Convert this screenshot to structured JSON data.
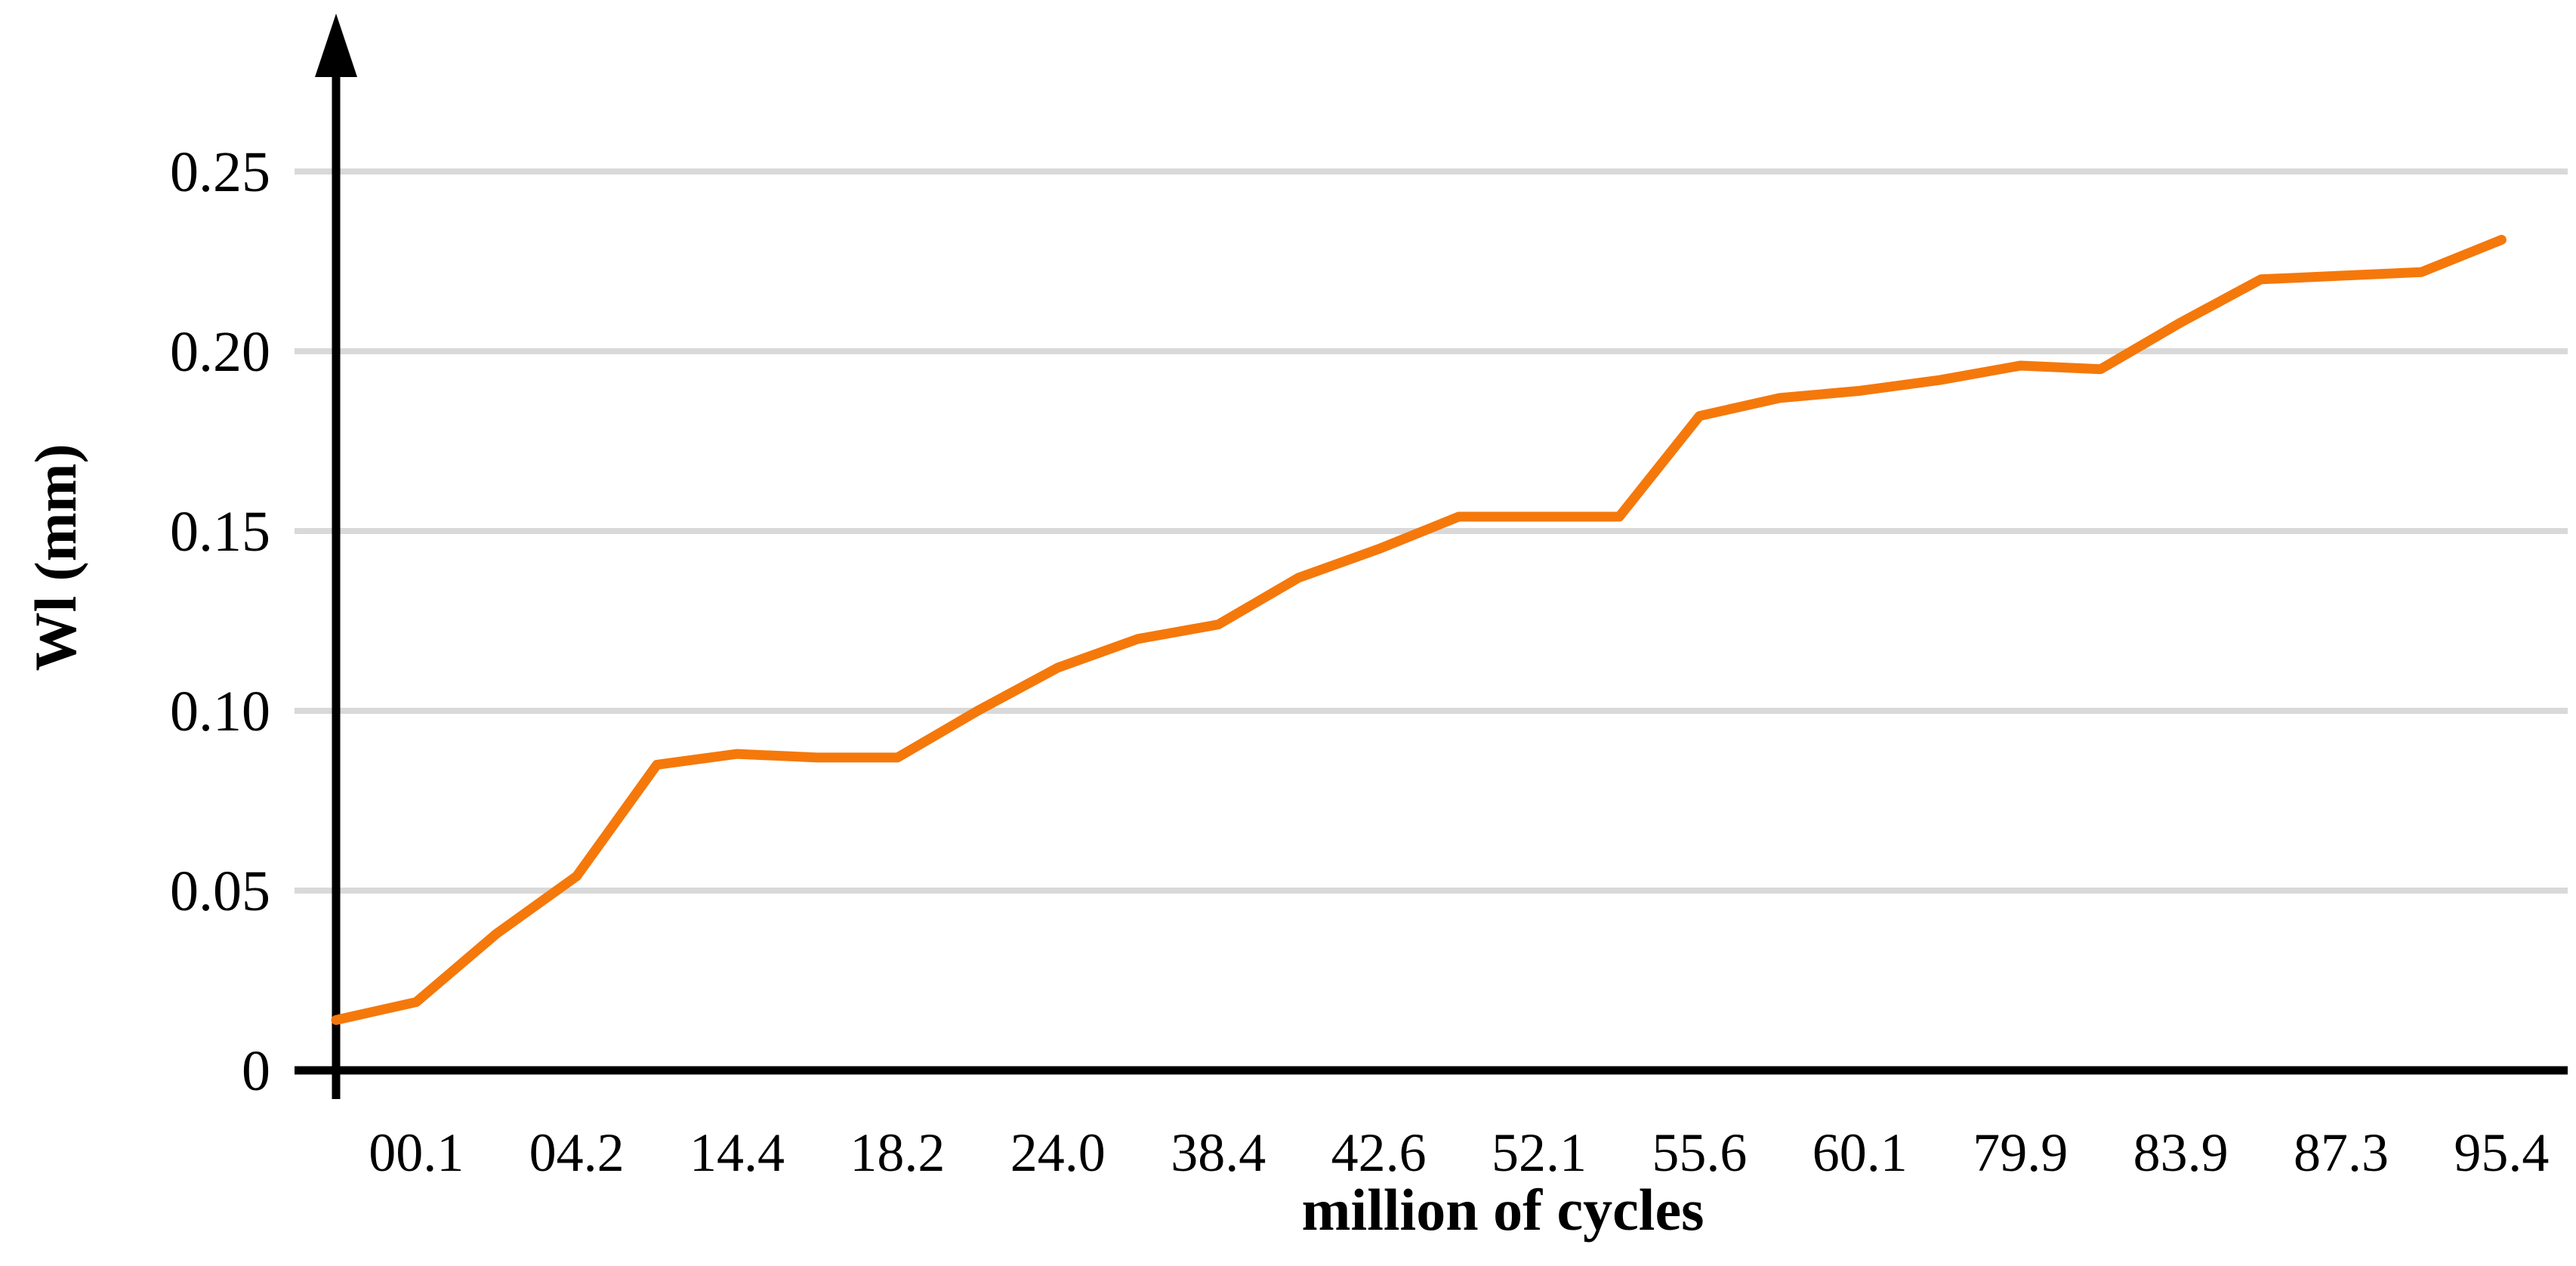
{
  "chart_data": {
    "type": "line",
    "title": "",
    "xlabel": "million of cycles",
    "ylabel": "Wl (mm)",
    "x_tick_labels": [
      "00.1",
      "04.2",
      "14.4",
      "18.2",
      "24.0",
      "38.4",
      "42.6",
      "52.1",
      "55.6",
      "60.1",
      "79.9",
      "83.9",
      "87.3",
      "95.4"
    ],
    "x_tick_point_indices": [
      1,
      3,
      5,
      7,
      9,
      11,
      13,
      15,
      17,
      19,
      21,
      23,
      25,
      27
    ],
    "y_ticks": [
      0,
      0.05,
      0.1,
      0.15,
      0.2,
      0.25
    ],
    "y_tick_labels": [
      "0",
      "0.05",
      "0.10",
      "0.15",
      "0.20",
      "0.25"
    ],
    "ylim": [
      0,
      0.28
    ],
    "grid": "horizontal-only",
    "legend": "none",
    "series": [
      {
        "color": "#F5780B",
        "values": [
          0.014,
          0.019,
          0.038,
          0.054,
          0.085,
          0.088,
          0.087,
          0.087,
          0.1,
          0.112,
          0.12,
          0.124,
          0.137,
          0.145,
          0.154,
          0.154,
          0.154,
          0.182,
          0.187,
          0.189,
          0.192,
          0.196,
          0.195,
          0.208,
          0.22,
          0.221,
          0.222,
          0.231
        ]
      }
    ],
    "colors": {
      "line": "#F5780B",
      "gridline": "#D9D9D9",
      "axis": "#000000",
      "text": "#000000",
      "background": "#FFFFFF"
    }
  }
}
